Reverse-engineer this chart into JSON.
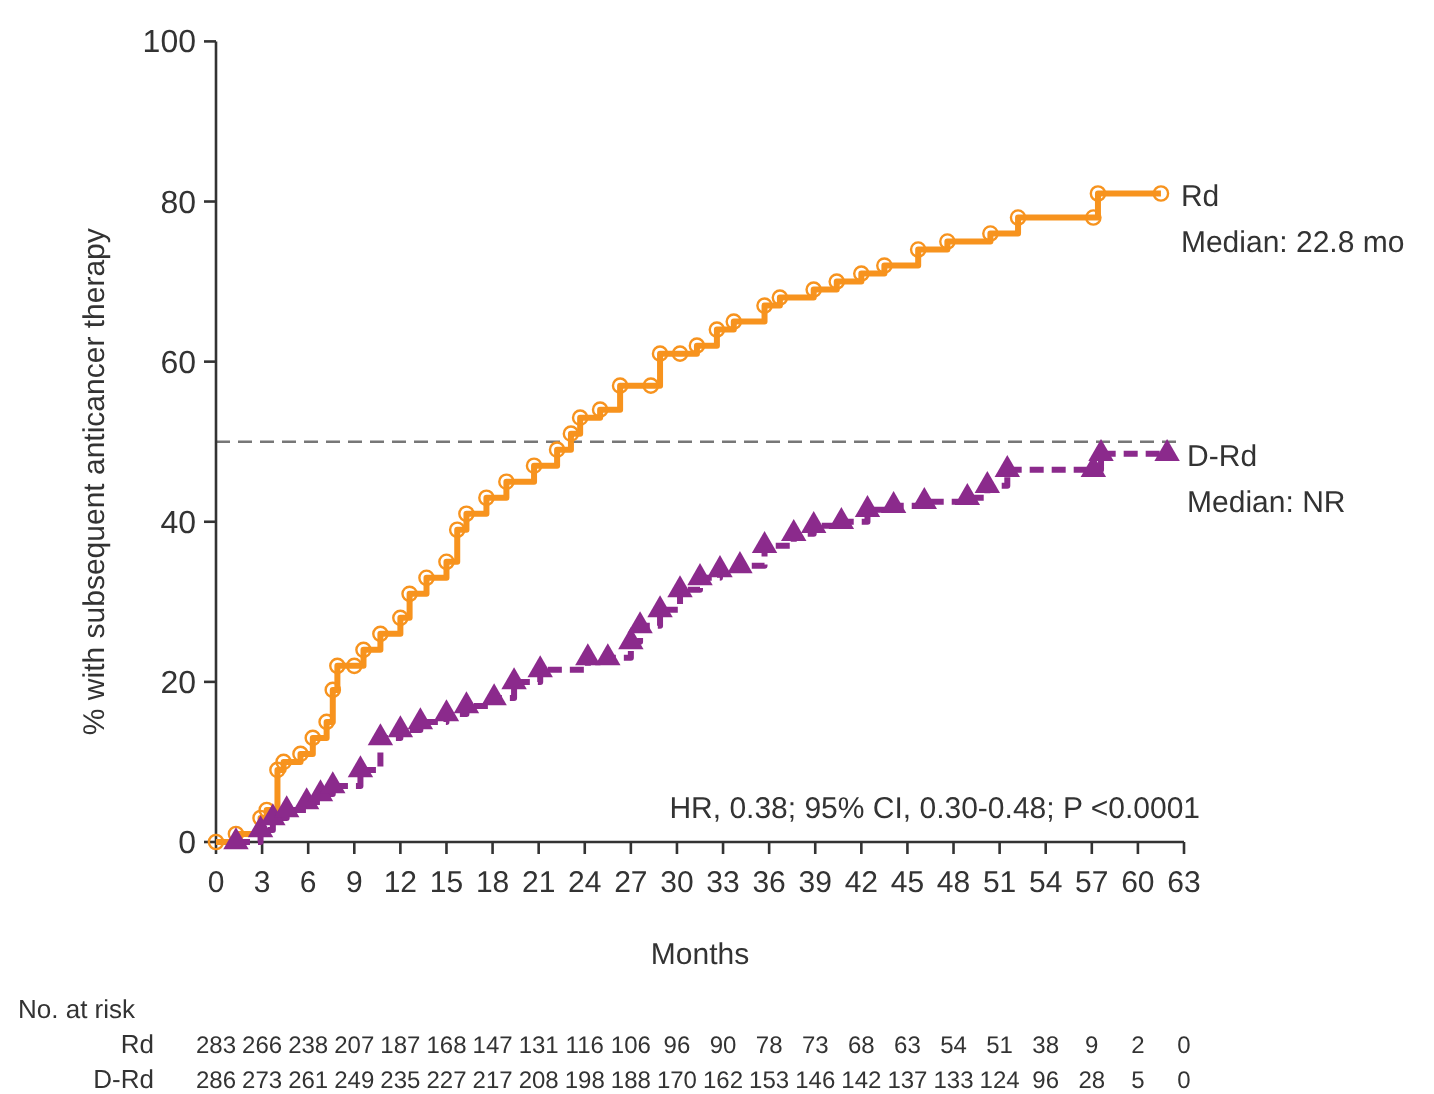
{
  "chart_data": {
    "type": "step",
    "xlabel": "Months",
    "ylabel": "% with subsequent anticancer therapy",
    "xlim": [
      0,
      63
    ],
    "xticks": [
      0,
      3,
      6,
      9,
      12,
      15,
      18,
      21,
      24,
      27,
      30,
      33,
      36,
      39,
      42,
      45,
      48,
      51,
      54,
      57,
      60,
      63
    ],
    "ylim": [
      0,
      100
    ],
    "yticks": [
      0,
      20,
      40,
      60,
      80,
      100
    ],
    "series": [
      {
        "name": "Rd",
        "color": "#f7931e",
        "marker": "circle",
        "line_style": "solid",
        "x": [
          0,
          1.3,
          2.9,
          3.3,
          4.0,
          4.4,
          5.5,
          6.3,
          7.2,
          7.6,
          7.9,
          9.0,
          9.6,
          10.7,
          12.0,
          12.6,
          13.7,
          15.0,
          15.7,
          16.3,
          17.6,
          18.9,
          20.7,
          22.2,
          23.1,
          23.7,
          25.0,
          26.3,
          28.3,
          28.9,
          30.2,
          31.3,
          32.6,
          33.7,
          35.7,
          36.7,
          38.9,
          40.4,
          42.0,
          43.5,
          45.7,
          47.6,
          50.4,
          52.2,
          57.1,
          57.4,
          61.5
        ],
        "values": [
          0,
          1,
          3,
          4,
          9,
          10,
          11,
          13,
          15,
          19,
          22,
          22,
          24,
          26,
          28,
          31,
          33,
          35,
          39,
          41,
          43,
          45,
          47,
          49,
          51,
          53,
          54,
          57,
          57,
          61,
          61,
          62,
          64,
          65,
          67,
          68,
          69,
          70,
          71,
          72,
          74,
          75,
          76,
          78,
          78,
          81,
          81
        ]
      },
      {
        "name": "D-Rd",
        "color": "#8b2a8c",
        "marker": "triangle",
        "line_style": "dashed",
        "x": [
          1.3,
          2.9,
          3.7,
          4.6,
          5.9,
          6.8,
          7.6,
          9.4,
          10.7,
          12.0,
          13.3,
          15.0,
          16.3,
          18.1,
          19.4,
          21.1,
          24.2,
          25.5,
          27.0,
          27.6,
          28.9,
          30.2,
          31.5,
          32.8,
          34.1,
          35.7,
          37.6,
          38.9,
          40.7,
          42.4,
          44.1,
          46.1,
          48.9,
          50.2,
          51.5,
          57.1,
          57.6,
          61.9
        ],
        "values": [
          0,
          1.5,
          3,
          4,
          5,
          6,
          7,
          9,
          13,
          14,
          15,
          16,
          17,
          18,
          20,
          21.5,
          23,
          23,
          25,
          27,
          29,
          31.5,
          33,
          34,
          34.5,
          37,
          38.5,
          39.5,
          40,
          41.5,
          42,
          42.5,
          43,
          44.5,
          46.5,
          46.5,
          48.5,
          48.5
        ]
      }
    ],
    "ref_lines": [
      {
        "axis": "y",
        "value": 50,
        "color": "#777777",
        "line_style": "dashed"
      }
    ],
    "annotations": [
      "HR, 0.38; 95% CI, 0.30-0.48; P <0.0001",
      "Median: 22.8 mo",
      "Median: NR",
      "No. at risk",
      "Rd 283 266 238 207 187 168 147 131 116 106 96 90 78 73 68 63 54 51 38 9 2 0",
      "D-Rd 286 273 261 249 235 227 217 208 198 188 170 162 153 146 142 137 133 124 96 28 5 0"
    ]
  }
}
